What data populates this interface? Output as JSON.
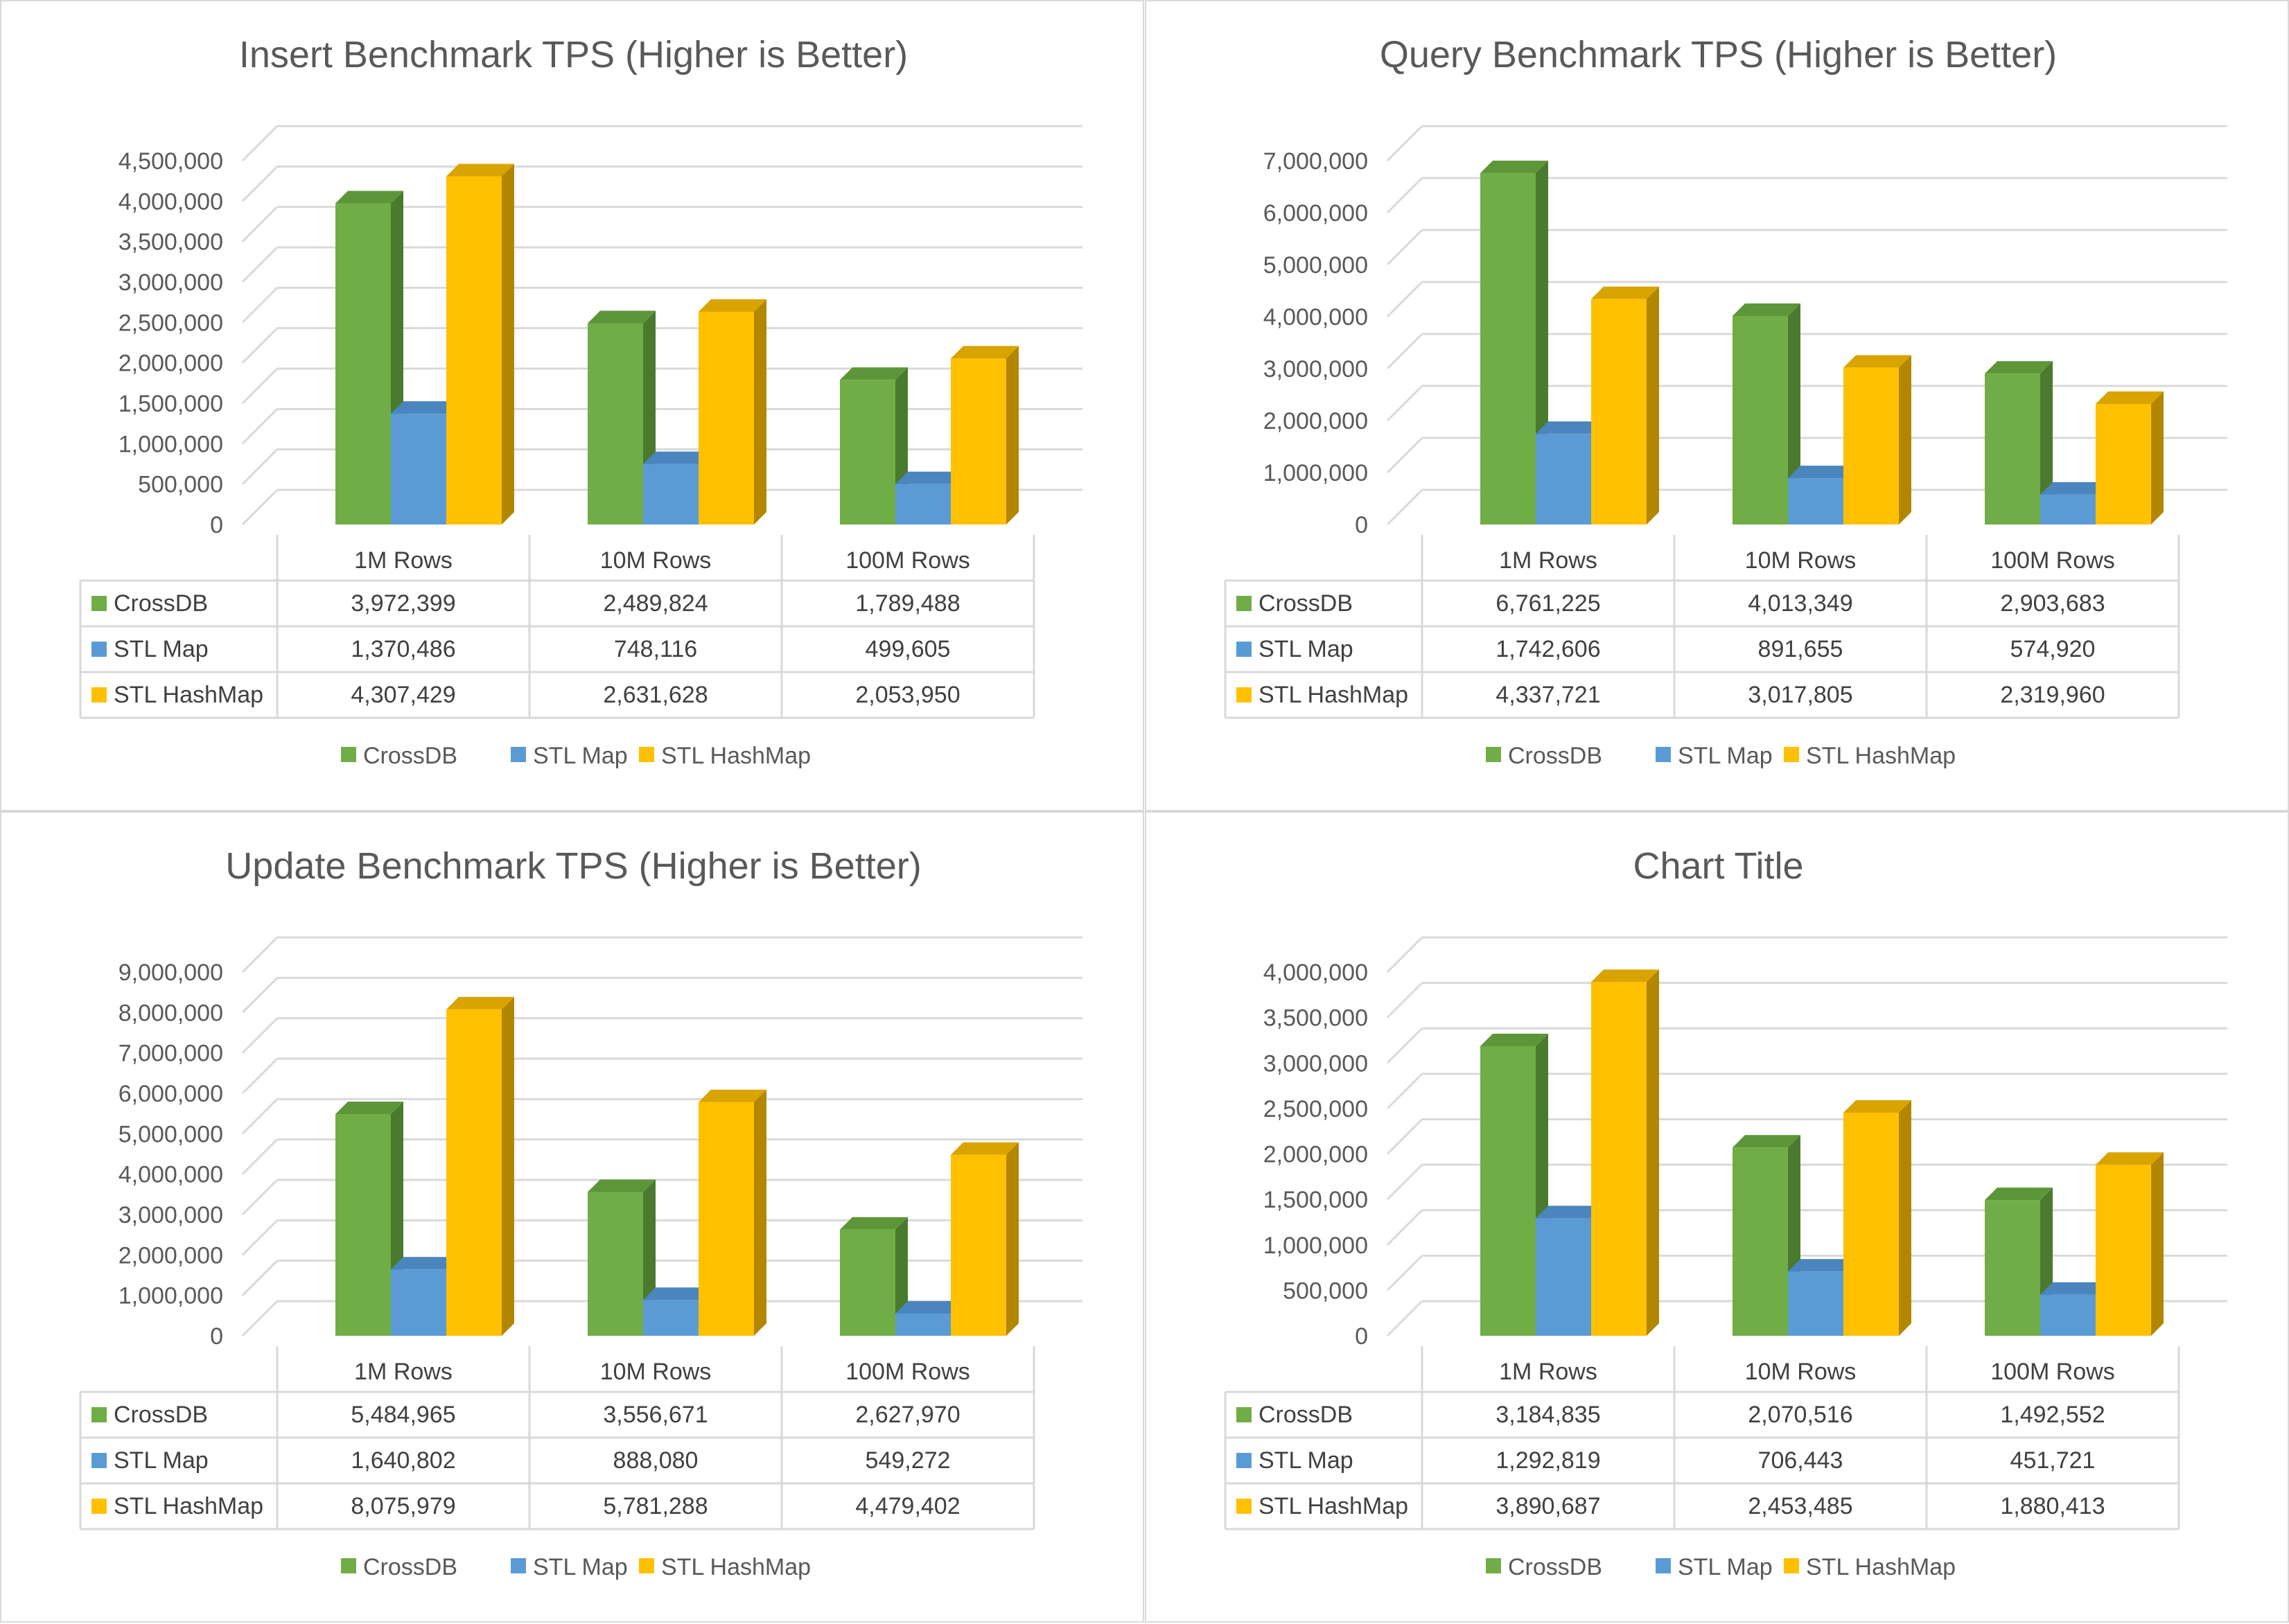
{
  "colors": {
    "CrossDB": {
      "front": "#70ad47",
      "side": "#4a7a2e",
      "top": "#5d9639"
    },
    "STL Map": {
      "front": "#5b9bd5",
      "side": "#3f74a8",
      "top": "#4a85be"
    },
    "STL HashMap": {
      "front": "#ffc000",
      "side": "#b38600",
      "top": "#d9a300"
    },
    "grid": "#d9d9d9",
    "text": "#595959"
  },
  "chart_data": [
    {
      "type": "bar",
      "title": "Insert Benchmark TPS (Higher is Better)",
      "categories": [
        "1M Rows",
        "10M Rows",
        "100M Rows"
      ],
      "ylim": [
        0,
        4500000
      ],
      "yticks": [
        "0",
        "500,000",
        "1,000,000",
        "1,500,000",
        "2,000,000",
        "2,500,000",
        "3,000,000",
        "3,500,000",
        "4,000,000",
        "4,500,000"
      ],
      "grid": true,
      "legend": "bottom",
      "series": [
        {
          "name": "CrossDB",
          "values": [
            3972399,
            2489824,
            1789488
          ],
          "labels": [
            "3,972,399",
            "2,489,824",
            "1,789,488"
          ]
        },
        {
          "name": "STL Map",
          "values": [
            1370486,
            748116,
            499605
          ],
          "labels": [
            "1,370,486",
            "748,116",
            "499,605"
          ]
        },
        {
          "name": "STL HashMap",
          "values": [
            4307429,
            2631628,
            2053950
          ],
          "labels": [
            "4,307,429",
            "2,631,628",
            "2,053,950"
          ]
        }
      ]
    },
    {
      "type": "bar",
      "title": "Query Benchmark TPS (Higher is Better)",
      "categories": [
        "1M Rows",
        "10M Rows",
        "100M Rows"
      ],
      "ylim": [
        0,
        7000000
      ],
      "yticks": [
        "0",
        "1,000,000",
        "2,000,000",
        "3,000,000",
        "4,000,000",
        "5,000,000",
        "6,000,000",
        "7,000,000"
      ],
      "grid": true,
      "legend": "bottom",
      "series": [
        {
          "name": "CrossDB",
          "values": [
            6761225,
            4013349,
            2903683
          ],
          "labels": [
            "6,761,225",
            "4,013,349",
            "2,903,683"
          ]
        },
        {
          "name": "STL Map",
          "values": [
            1742606,
            891655,
            574920
          ],
          "labels": [
            "1,742,606",
            "891,655",
            "574,920"
          ]
        },
        {
          "name": "STL HashMap",
          "values": [
            4337721,
            3017805,
            2319960
          ],
          "labels": [
            "4,337,721",
            "3,017,805",
            "2,319,960"
          ]
        }
      ]
    },
    {
      "type": "bar",
      "title": "Update Benchmark TPS (Higher is Better)",
      "categories": [
        "1M Rows",
        "10M Rows",
        "100M Rows"
      ],
      "ylim": [
        0,
        9000000
      ],
      "yticks": [
        "0",
        "1,000,000",
        "2,000,000",
        "3,000,000",
        "4,000,000",
        "5,000,000",
        "6,000,000",
        "7,000,000",
        "8,000,000",
        "9,000,000"
      ],
      "grid": true,
      "legend": "bottom",
      "series": [
        {
          "name": "CrossDB",
          "values": [
            5484965,
            3556671,
            2627970
          ],
          "labels": [
            "5,484,965",
            "3,556,671",
            "2,627,970"
          ]
        },
        {
          "name": "STL Map",
          "values": [
            1640802,
            888080,
            549272
          ],
          "labels": [
            "1,640,802",
            "888,080",
            "549,272"
          ]
        },
        {
          "name": "STL HashMap",
          "values": [
            8075979,
            5781288,
            4479402
          ],
          "labels": [
            "8,075,979",
            "5,781,288",
            "4,479,402"
          ]
        }
      ]
    },
    {
      "type": "bar",
      "title": "Chart Title",
      "categories": [
        "1M Rows",
        "10M Rows",
        "100M Rows"
      ],
      "ylim": [
        0,
        4000000
      ],
      "yticks": [
        "0",
        "500,000",
        "1,000,000",
        "1,500,000",
        "2,000,000",
        "2,500,000",
        "3,000,000",
        "3,500,000",
        "4,000,000"
      ],
      "grid": true,
      "legend": "bottom",
      "series": [
        {
          "name": "CrossDB",
          "values": [
            3184835,
            2070516,
            1492552
          ],
          "labels": [
            "3,184,835",
            "2,070,516",
            "1,492,552"
          ]
        },
        {
          "name": "STL Map",
          "values": [
            1292819,
            706443,
            451721
          ],
          "labels": [
            "1,292,819",
            "706,443",
            "451,721"
          ]
        },
        {
          "name": "STL HashMap",
          "values": [
            3890687,
            2453485,
            1880413
          ],
          "labels": [
            "3,890,687",
            "2,453,485",
            "1,880,413"
          ]
        }
      ]
    }
  ]
}
